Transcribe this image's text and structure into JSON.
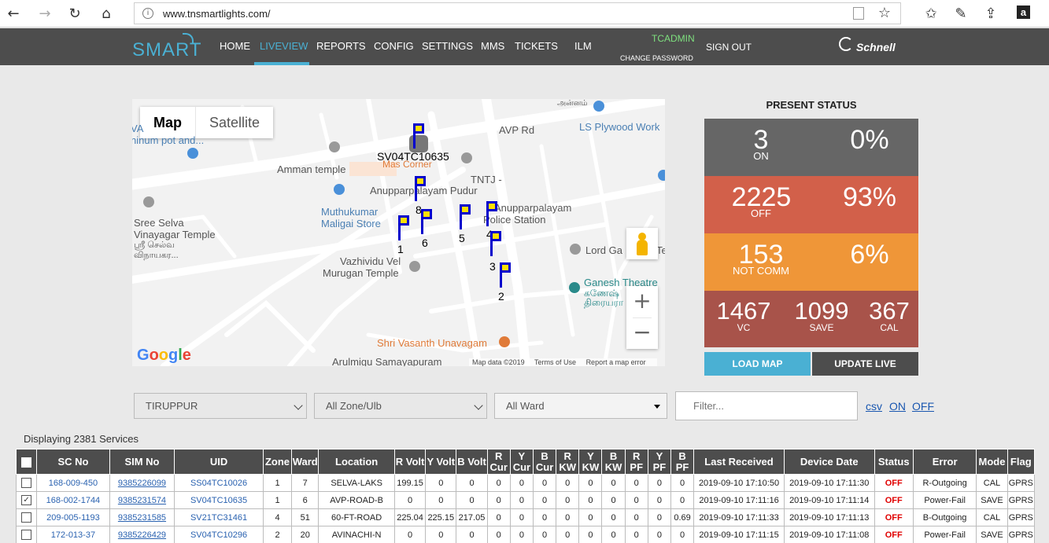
{
  "browser": {
    "url": "www.tnsmartlights.com/",
    "back_icon": "←",
    "forward_icon": "→",
    "reload_icon": "↻",
    "home_icon": "⌂",
    "star_icon": "☆",
    "favorites_icon": "✩",
    "pen_icon": "✎",
    "share_icon": "⇪",
    "amazon_icon": "a"
  },
  "nav": {
    "logo": "SMART",
    "items": [
      "HOME",
      "LIVEVIEW",
      "REPORTS",
      "CONFIG",
      "SETTINGS",
      "MMS",
      "TICKETS",
      "ILM"
    ],
    "active": "LIVEVIEW",
    "user": "TCADMIN",
    "change_password": "CHANGE PASSWORD",
    "sign_out": "SIGN OUT",
    "brand": "Schnell"
  },
  "map": {
    "type_map": "Map",
    "type_satellite": "Satellite",
    "zoom_in": "+",
    "zoom_out": "−",
    "google": [
      "G",
      "o",
      "o",
      "g",
      "l",
      "e"
    ],
    "attribution": [
      "Map data ©2019",
      "Terms of Use",
      "Report a map error"
    ],
    "places": {
      "avp_rd": "AVP Rd",
      "ls_plywood": "LS Plywood Work",
      "va": "VA",
      "ninum": "ninum pot and...",
      "amman_temple": "Amman temple",
      "mas_corner": "Mas Corner",
      "tntj": "TNTJ -",
      "anuppar_pudur": "Anupparpalayam Pudur",
      "muthukumar1": "Muthukumar",
      "muthukumar2": "Maligai Store",
      "anuppar_ps1": "Anupparpalayam",
      "anuppar_ps2": "Police Station",
      "sree1": "Sree Selva",
      "sree2": "Vinayagar Temple",
      "sree3": "ஸ்ரீ செல்வ",
      "sree4": "விநாயகர...",
      "lord_ga": "Lord Ga",
      "te": "Te",
      "vazhi1": "Vazhividu Vel",
      "vazhi2": "Murugan Temple",
      "ganesh1": "Ganesh Theatre",
      "ganesh2": "கணேஷ்",
      "ganesh3": "திரையரா",
      "vasanth": "Shri Vasanth Unavagam",
      "arulmigu": "Arulmigu Samayapuram",
      "top_tamil": "அன்னம்"
    },
    "selected_uid": "SV04TC10635",
    "markers": [
      "1",
      "6",
      "8",
      "5",
      "4",
      "3",
      "2"
    ]
  },
  "status": {
    "title": "PRESENT STATUS",
    "on_count": "3",
    "on_label": "ON",
    "on_pct": "0%",
    "off_count": "2225",
    "off_label": "OFF",
    "off_pct": "93%",
    "nc_count": "153",
    "nc_label": "NOT COMM",
    "nc_pct": "6%",
    "vc_count": "1467",
    "vc_label": "VC",
    "save_count": "1099",
    "save_label": "SAVE",
    "cal_count": "367",
    "cal_label": "CAL",
    "load_map": "LOAD MAP",
    "update_live": "UPDATE LIVE",
    "colors": {
      "on": "#666666",
      "off": "#d2604a",
      "nc": "#ef9638",
      "vc": "#a8534a",
      "load": "#4ab0d3",
      "update": "#4d4d4d"
    }
  },
  "filters": {
    "district": "TIRUPPUR",
    "zone": "All Zone/Ulb",
    "ward": "All Ward",
    "filter_placeholder": "Filter...",
    "csv": "csv",
    "on": "ON",
    "off": "OFF"
  },
  "displaying": "Displaying 2381 Services",
  "table": {
    "headers": [
      "SC No",
      "SIM No",
      "UID",
      "Zone",
      "Ward",
      "Location",
      "R Volt",
      "Y Volt",
      "B Volt",
      "R Cur",
      "Y Cur",
      "B Cur",
      "R KW",
      "Y KW",
      "B KW",
      "R PF",
      "Y PF",
      "B PF",
      "Last Received",
      "Device Date",
      "Status",
      "Error",
      "Mode",
      "Flag"
    ],
    "rows": [
      {
        "checked": false,
        "cells": [
          "168-009-450",
          "9385226099",
          "SS04TC10026",
          "1",
          "7",
          "SELVA-LAKS",
          "199.15",
          "0",
          "0",
          "0",
          "0",
          "0",
          "0",
          "0",
          "0",
          "0",
          "0",
          "0",
          "2019-09-10 17:10:50",
          "2019-09-10 17:11:30",
          "OFF",
          "R-Outgoing",
          "CAL",
          "GPRS"
        ]
      },
      {
        "checked": true,
        "cells": [
          "168-002-1744",
          "9385231574",
          "SV04TC10635",
          "1",
          "6",
          "AVP-ROAD-B",
          "0",
          "0",
          "0",
          "0",
          "0",
          "0",
          "0",
          "0",
          "0",
          "0",
          "0",
          "0",
          "2019-09-10 17:11:16",
          "2019-09-10 17:11:14",
          "OFF",
          "Power-Fail",
          "SAVE",
          "GPRS"
        ]
      },
      {
        "checked": false,
        "cells": [
          "209-005-1193",
          "9385231585",
          "SV21TC31461",
          "4",
          "51",
          "60-FT-ROAD",
          "225.04",
          "225.15",
          "217.05",
          "0",
          "0",
          "0",
          "0",
          "0",
          "0",
          "0",
          "0",
          "0.69",
          "2019-09-10 17:11:33",
          "2019-09-10 17:11:13",
          "OFF",
          "B-Outgoing",
          "CAL",
          "GPRS"
        ]
      },
      {
        "checked": false,
        "cells": [
          "172-013-37",
          "9385226429",
          "SV04TC10296",
          "2",
          "20",
          "AVINACHI-N",
          "0",
          "0",
          "0",
          "0",
          "0",
          "0",
          "0",
          "0",
          "0",
          "0",
          "0",
          "0",
          "2019-09-10 17:11:15",
          "2019-09-10 17:11:08",
          "OFF",
          "Power-Fail",
          "SAVE",
          "GPRS"
        ]
      }
    ]
  }
}
